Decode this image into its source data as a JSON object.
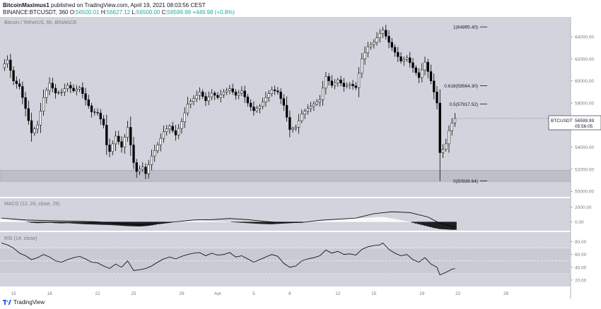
{
  "header": {
    "author": "BitcoinMaximus1",
    "published_text": "published on TradingView.com, April 19, 2021 08:03:56 CEST",
    "symbol_line": "BINANCE:BTCUSDT, 360",
    "open_label": "O:",
    "open": "56500.01",
    "high_label": "H:",
    "high": "56627.12",
    "low_label": "L:",
    "low": "56500.00",
    "close_label": "C:",
    "close": "56599.99",
    "change": "+449.98 (+0.8%)"
  },
  "footer": {
    "brand": "TradingView"
  },
  "colors": {
    "background": "#d1d4dc",
    "axis_bg": "#ffffff",
    "candle_up": "#ffffff",
    "candle_down": "#000000",
    "ticker_green": "#26a69a",
    "support_band": "#bcbfc8"
  },
  "chart_data": {
    "type": "candlestick",
    "title": "Bitcoin / TetherUS, 6h, BINANCE",
    "symbol_tag": "BTCUSDT",
    "last_price": "56599.99",
    "countdown": "05:56:05",
    "y_ticks": [
      "64000.00",
      "62000.00",
      "60000.00",
      "58000.00",
      "56000.00",
      "54000.00",
      "52000.00",
      "50000.00"
    ],
    "ylim": [
      49500,
      65800
    ],
    "support_zone": [
      50900,
      51900
    ],
    "x_ticks": [
      {
        "label": "15",
        "index": 4
      },
      {
        "label": "18",
        "index": 16
      },
      {
        "label": "22",
        "index": 32
      },
      {
        "label": "25",
        "index": 44
      },
      {
        "label": "29",
        "index": 60
      },
      {
        "label": "Apr",
        "index": 72
      },
      {
        "label": "5",
        "index": 84
      },
      {
        "label": "8",
        "index": 96
      },
      {
        "label": "12",
        "index": 112
      },
      {
        "label": "15",
        "index": 124
      },
      {
        "label": "19",
        "index": 140
      },
      {
        "label": "22",
        "index": 152
      },
      {
        "label": "26",
        "index": 168
      }
    ],
    "x_slots": 190,
    "fib_levels": [
      {
        "label": "1(64895.40)",
        "value": 64895.4
      },
      {
        "label": "0.618(59564.30)",
        "value": 59564.3
      },
      {
        "label": "0.5(57917.52)",
        "value": 57917.52
      },
      {
        "label": "0(50939.64)",
        "value": 50939.64
      }
    ],
    "close_path": [
      [
        0,
        61200
      ],
      [
        2,
        61900
      ],
      [
        4,
        60000
      ],
      [
        6,
        59500
      ],
      [
        8,
        57500
      ],
      [
        10,
        55300
      ],
      [
        12,
        56000
      ],
      [
        14,
        58500
      ],
      [
        16,
        59800
      ],
      [
        18,
        58900
      ],
      [
        20,
        59000
      ],
      [
        22,
        59600
      ],
      [
        24,
        59100
      ],
      [
        26,
        59400
      ],
      [
        28,
        58300
      ],
      [
        30,
        57200
      ],
      [
        32,
        57100
      ],
      [
        34,
        56000
      ],
      [
        35,
        54200
      ],
      [
        36,
        53600
      ],
      [
        38,
        55000
      ],
      [
        40,
        54000
      ],
      [
        42,
        55800
      ],
      [
        44,
        52600
      ],
      [
        45,
        51800
      ],
      [
        47,
        52200
      ],
      [
        48,
        51600
      ],
      [
        50,
        53200
      ],
      [
        52,
        54200
      ],
      [
        54,
        55400
      ],
      [
        56,
        55900
      ],
      [
        58,
        55100
      ],
      [
        60,
        56300
      ],
      [
        62,
        57900
      ],
      [
        64,
        58400
      ],
      [
        66,
        59000
      ],
      [
        68,
        58200
      ],
      [
        70,
        58900
      ],
      [
        72,
        58500
      ],
      [
        74,
        59000
      ],
      [
        76,
        59300
      ],
      [
        78,
        58700
      ],
      [
        80,
        59100
      ],
      [
        82,
        58000
      ],
      [
        84,
        57300
      ],
      [
        86,
        57700
      ],
      [
        88,
        58500
      ],
      [
        90,
        59200
      ],
      [
        92,
        59000
      ],
      [
        94,
        57800
      ],
      [
        96,
        55600
      ],
      [
        98,
        55800
      ],
      [
        100,
        57000
      ],
      [
        102,
        57500
      ],
      [
        104,
        57900
      ],
      [
        106,
        58300
      ],
      [
        108,
        60400
      ],
      [
        110,
        59600
      ],
      [
        112,
        60100
      ],
      [
        114,
        59500
      ],
      [
        116,
        59700
      ],
      [
        118,
        59400
      ],
      [
        120,
        62000
      ],
      [
        122,
        63100
      ],
      [
        124,
        63500
      ],
      [
        126,
        64300
      ],
      [
        127,
        64600
      ],
      [
        129,
        63500
      ],
      [
        131,
        62600
      ],
      [
        133,
        61800
      ],
      [
        135,
        62100
      ],
      [
        137,
        61200
      ],
      [
        139,
        60300
      ],
      [
        141,
        61700
      ],
      [
        143,
        60000
      ],
      [
        145,
        58000
      ],
      [
        146,
        53500
      ],
      [
        147,
        53800
      ],
      [
        148,
        54300
      ],
      [
        149,
        55500
      ],
      [
        150,
        56200
      ],
      [
        151,
        56600
      ]
    ],
    "macd": {
      "label": "MACD (12, 26, close, 26)",
      "y_ticks": [
        "2000.00",
        "0.00"
      ],
      "ylim": [
        -1200,
        2800
      ],
      "line": [
        [
          0,
          500
        ],
        [
          8,
          250
        ],
        [
          16,
          150
        ],
        [
          24,
          100
        ],
        [
          32,
          0
        ],
        [
          40,
          -250
        ],
        [
          46,
          -400
        ],
        [
          52,
          -250
        ],
        [
          58,
          0
        ],
        [
          64,
          250
        ],
        [
          70,
          300
        ],
        [
          76,
          450
        ],
        [
          82,
          300
        ],
        [
          88,
          50
        ],
        [
          94,
          -150
        ],
        [
          100,
          -100
        ],
        [
          106,
          200
        ],
        [
          112,
          350
        ],
        [
          118,
          500
        ],
        [
          124,
          1100
        ],
        [
          130,
          1350
        ],
        [
          136,
          1250
        ],
        [
          142,
          650
        ],
        [
          146,
          -200
        ],
        [
          151,
          -700
        ]
      ],
      "hist": [
        [
          0,
          400
        ],
        [
          2,
          300
        ],
        [
          4,
          200
        ],
        [
          6,
          150
        ],
        [
          8,
          50
        ],
        [
          10,
          -100
        ],
        [
          12,
          -150
        ],
        [
          14,
          -120
        ],
        [
          16,
          -100
        ],
        [
          18,
          -150
        ],
        [
          20,
          -180
        ],
        [
          22,
          -150
        ],
        [
          24,
          -200
        ],
        [
          26,
          -250
        ],
        [
          28,
          -300
        ],
        [
          30,
          -320
        ],
        [
          32,
          -350
        ],
        [
          34,
          -380
        ],
        [
          36,
          -400
        ],
        [
          38,
          -450
        ],
        [
          40,
          -500
        ],
        [
          42,
          -550
        ],
        [
          44,
          -580
        ],
        [
          46,
          -600
        ],
        [
          48,
          -550
        ],
        [
          50,
          -450
        ],
        [
          52,
          -300
        ],
        [
          54,
          -200
        ],
        [
          56,
          -100
        ],
        [
          58,
          50
        ],
        [
          60,
          100
        ],
        [
          62,
          150
        ],
        [
          64,
          200
        ],
        [
          66,
          220
        ],
        [
          68,
          180
        ],
        [
          70,
          120
        ],
        [
          72,
          80
        ],
        [
          74,
          50
        ],
        [
          76,
          0
        ],
        [
          78,
          -50
        ],
        [
          80,
          -100
        ],
        [
          82,
          -150
        ],
        [
          84,
          -200
        ],
        [
          86,
          -250
        ],
        [
          88,
          -280
        ],
        [
          90,
          -300
        ],
        [
          92,
          -250
        ],
        [
          94,
          -200
        ],
        [
          96,
          -150
        ],
        [
          98,
          -100
        ],
        [
          100,
          -50
        ],
        [
          102,
          50
        ],
        [
          104,
          100
        ],
        [
          106,
          150
        ],
        [
          108,
          200
        ],
        [
          110,
          250
        ],
        [
          112,
          300
        ],
        [
          114,
          350
        ],
        [
          116,
          400
        ],
        [
          118,
          450
        ],
        [
          120,
          500
        ],
        [
          122,
          550
        ],
        [
          124,
          600
        ],
        [
          126,
          650
        ],
        [
          128,
          600
        ],
        [
          130,
          450
        ],
        [
          132,
          300
        ],
        [
          134,
          150
        ],
        [
          136,
          0
        ],
        [
          138,
          -200
        ],
        [
          140,
          -400
        ],
        [
          142,
          -600
        ],
        [
          144,
          -800
        ],
        [
          146,
          -950
        ],
        [
          148,
          -1000
        ],
        [
          150,
          -1050
        ]
      ]
    },
    "rsi": {
      "label": "RSI (14, close)",
      "y_ticks": [
        "80.00",
        "60.00",
        "40.00",
        "20.00"
      ],
      "ylim": [
        10,
        95
      ],
      "band": [
        30,
        70
      ],
      "line": [
        [
          0,
          78
        ],
        [
          2,
          75
        ],
        [
          4,
          70
        ],
        [
          6,
          62
        ],
        [
          8,
          58
        ],
        [
          10,
          52
        ],
        [
          12,
          55
        ],
        [
          14,
          60
        ],
        [
          16,
          56
        ],
        [
          18,
          50
        ],
        [
          20,
          48
        ],
        [
          22,
          52
        ],
        [
          24,
          55
        ],
        [
          26,
          57
        ],
        [
          28,
          53
        ],
        [
          30,
          48
        ],
        [
          32,
          47
        ],
        [
          34,
          42
        ],
        [
          36,
          38
        ],
        [
          38,
          45
        ],
        [
          40,
          40
        ],
        [
          42,
          50
        ],
        [
          44,
          35
        ],
        [
          46,
          36
        ],
        [
          48,
          38
        ],
        [
          50,
          42
        ],
        [
          52,
          48
        ],
        [
          54,
          53
        ],
        [
          56,
          56
        ],
        [
          58,
          53
        ],
        [
          60,
          57
        ],
        [
          62,
          60
        ],
        [
          64,
          62
        ],
        [
          66,
          63
        ],
        [
          68,
          58
        ],
        [
          70,
          62
        ],
        [
          72,
          59
        ],
        [
          74,
          60
        ],
        [
          76,
          63
        ],
        [
          78,
          56
        ],
        [
          80,
          58
        ],
        [
          82,
          53
        ],
        [
          84,
          48
        ],
        [
          86,
          52
        ],
        [
          88,
          56
        ],
        [
          90,
          60
        ],
        [
          92,
          57
        ],
        [
          94,
          46
        ],
        [
          96,
          40
        ],
        [
          98,
          42
        ],
        [
          100,
          50
        ],
        [
          102,
          53
        ],
        [
          104,
          55
        ],
        [
          106,
          58
        ],
        [
          108,
          67
        ],
        [
          110,
          62
        ],
        [
          112,
          65
        ],
        [
          114,
          60
        ],
        [
          116,
          61
        ],
        [
          118,
          59
        ],
        [
          120,
          68
        ],
        [
          122,
          72
        ],
        [
          124,
          74
        ],
        [
          126,
          75
        ],
        [
          127,
          78
        ],
        [
          129,
          68
        ],
        [
          131,
          62
        ],
        [
          133,
          58
        ],
        [
          135,
          60
        ],
        [
          137,
          52
        ],
        [
          139,
          48
        ],
        [
          141,
          55
        ],
        [
          143,
          45
        ],
        [
          145,
          40
        ],
        [
          146,
          28
        ],
        [
          148,
          32
        ],
        [
          150,
          37
        ],
        [
          151,
          38
        ]
      ]
    }
  }
}
